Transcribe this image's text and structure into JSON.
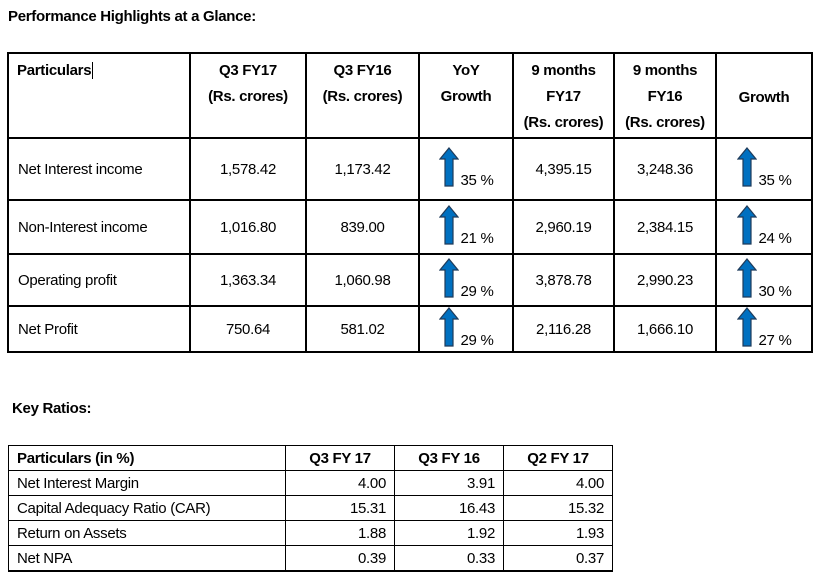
{
  "performance": {
    "title": "Performance Highlights at a Glance:",
    "headers": [
      [
        "Particulars"
      ],
      [
        "Q3 FY17",
        "(Rs. crores)"
      ],
      [
        "Q3 FY16",
        "(Rs. crores)"
      ],
      [
        "YoY",
        "Growth"
      ],
      [
        "9 months",
        "FY17",
        "(Rs. crores)"
      ],
      [
        "9 months",
        "FY16",
        "(Rs. crores)"
      ],
      [
        "Growth"
      ]
    ],
    "rows": [
      {
        "label": "Net Interest income",
        "q3fy17": "1,578.42",
        "q3fy16": "1,173.42",
        "yoy": "35 %",
        "m9fy17": "4,395.15",
        "m9fy16": "3,248.36",
        "growth": "35 %"
      },
      {
        "label": "Non-Interest income",
        "q3fy17": "1,016.80",
        "q3fy16": "839.00",
        "yoy": "21 %",
        "m9fy17": "2,960.19",
        "m9fy16": "2,384.15",
        "growth": "24 %"
      },
      {
        "label": "Operating profit",
        "q3fy17": "1,363.34",
        "q3fy16": "1,060.98",
        "yoy": "29 %",
        "m9fy17": "3,878.78",
        "m9fy16": "2,990.23",
        "growth": "30 %"
      },
      {
        "label": "Net Profit",
        "q3fy17": "750.64",
        "q3fy16": "581.02",
        "yoy": "29 %",
        "m9fy17": "2,116.28",
        "m9fy16": "1,666.10",
        "growth": "27 %"
      }
    ],
    "arrow_icon": "up-arrow-icon",
    "arrow_color": "#0070C0"
  },
  "ratios": {
    "title": "Key Ratios:",
    "headers": [
      "Particulars (in %)",
      "Q3 FY 17",
      "Q3 FY 16",
      "Q2 FY 17"
    ],
    "rows": [
      [
        "Net Interest Margin",
        "4.00",
        "3.91",
        "4.00"
      ],
      [
        "Capital Adequacy Ratio (CAR)",
        "15.31",
        "16.43",
        "15.32"
      ],
      [
        "Return on Assets",
        "1.88",
        "1.92",
        "1.93"
      ],
      [
        "Net NPA",
        "0.39",
        "0.33",
        "0.37"
      ]
    ]
  }
}
